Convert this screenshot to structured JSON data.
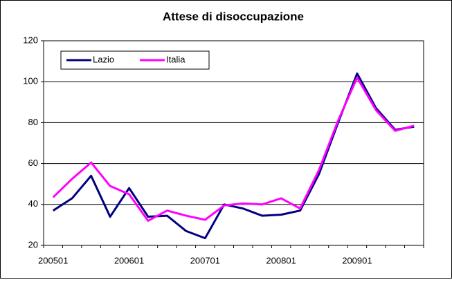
{
  "chart_data": {
    "type": "line",
    "title": "Attese di disoccupazione",
    "categories": [
      "200501",
      null,
      null,
      null,
      "200601",
      null,
      null,
      null,
      "200701",
      null,
      null,
      null,
      "200801",
      null,
      null,
      null,
      "200901",
      null,
      null,
      null
    ],
    "series": [
      {
        "name": "Lazio",
        "color": "#000080",
        "values": [
          37,
          43,
          54,
          34,
          48,
          34,
          34.5,
          27,
          23.5,
          40,
          38,
          34.5,
          35,
          37,
          55,
          80,
          104,
          87,
          76.5,
          78
        ]
      },
      {
        "name": "Italia",
        "color": "#ff00ff",
        "values": [
          43.5,
          52.5,
          60.5,
          49,
          45,
          32,
          37,
          34.5,
          32.5,
          39.5,
          40.5,
          40,
          43,
          38,
          57,
          81,
          102,
          86,
          76,
          78.5
        ]
      }
    ],
    "ylim": [
      20,
      120
    ],
    "yticks": [
      20,
      40,
      60,
      80,
      100,
      120
    ],
    "grid": true,
    "legend": "top-left"
  }
}
